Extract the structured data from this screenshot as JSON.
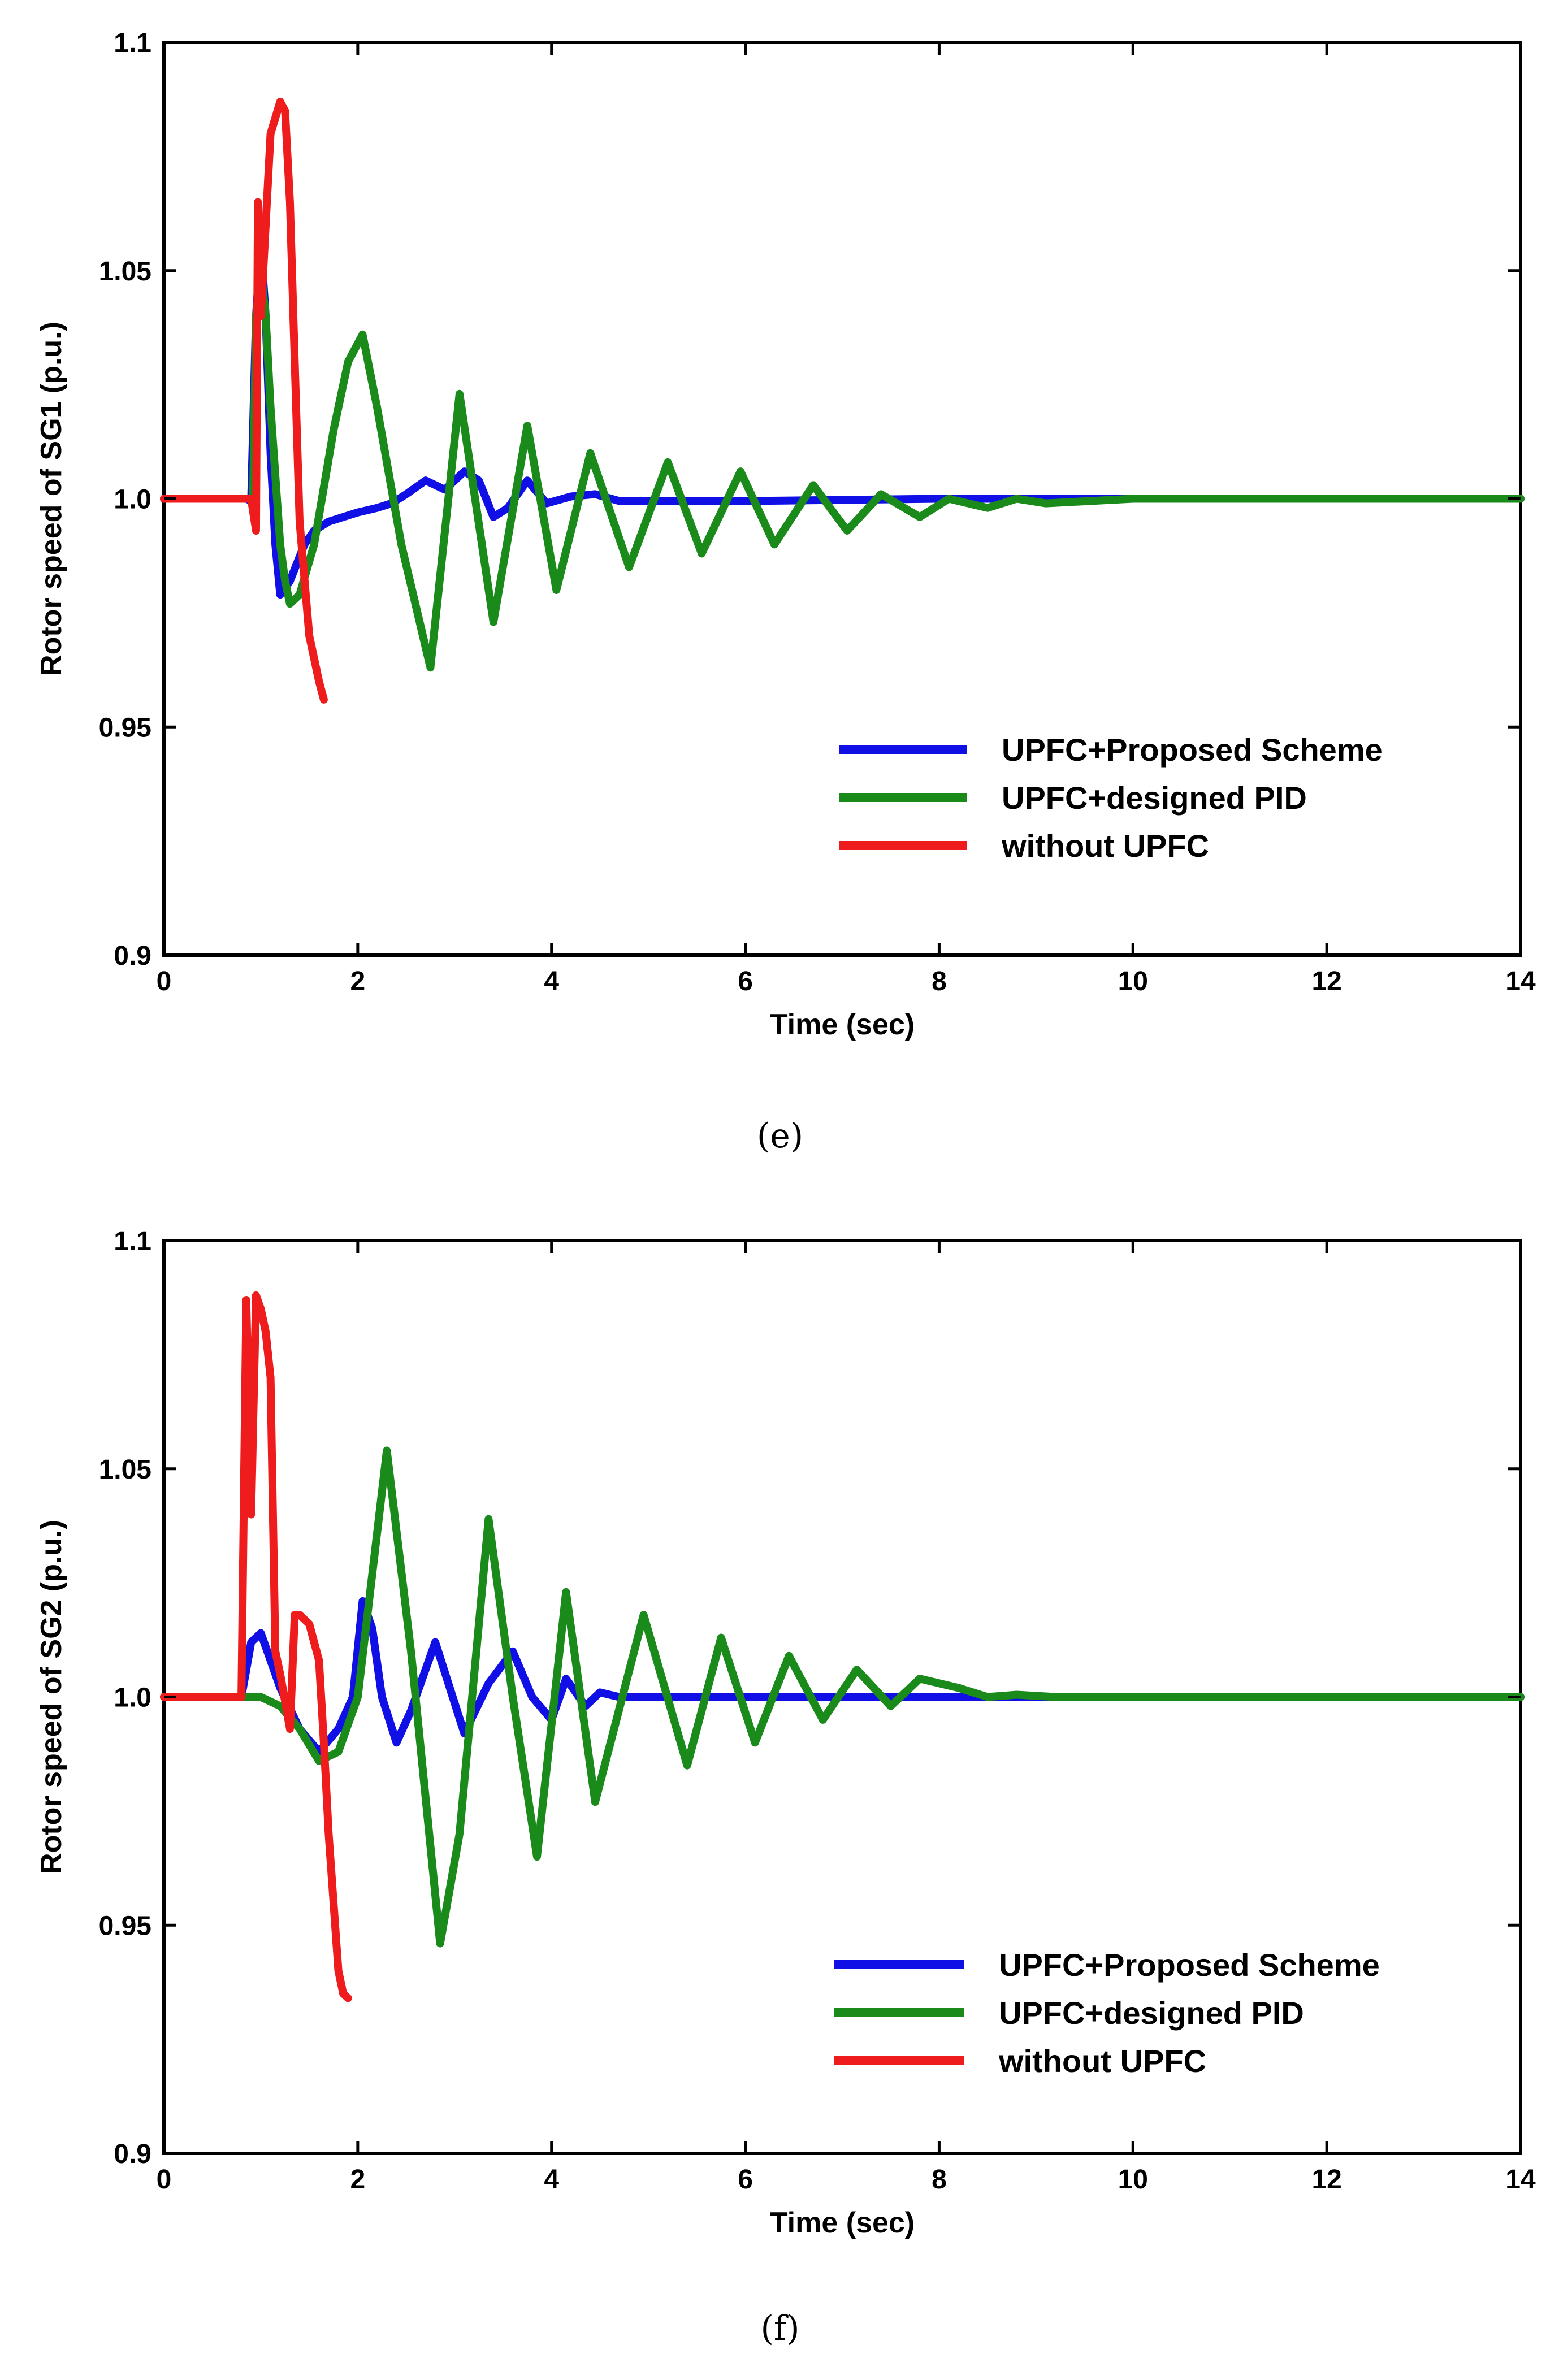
{
  "colors": {
    "proposed": "#1010e6",
    "pid": "#1a8a1a",
    "without": "#ee1c1c"
  },
  "chart_data": [
    {
      "type": "line",
      "panel": "(e)",
      "title": "",
      "xlabel": "Time (sec)",
      "ylabel": "Rotor speed of SG1 (p.u.)",
      "xlim": [
        0,
        14
      ],
      "ylim": [
        0.9,
        1.1
      ],
      "xticks": [
        "0",
        "2",
        "4",
        "6",
        "8",
        "10",
        "12",
        "14"
      ],
      "yticks": [
        "0.9",
        "0.95",
        "1.0",
        "1.05",
        "1.1"
      ],
      "legend": [
        "UPFC+Proposed Scheme",
        "UPFC+designed PID",
        "without UPFC"
      ],
      "legend_position": "bottom-right",
      "series": [
        {
          "name": "UPFC+Proposed Scheme",
          "color_key": "proposed",
          "x": [
            0,
            0.85,
            0.9,
            0.95,
            1.0,
            1.05,
            1.1,
            1.15,
            1.2,
            1.3,
            1.45,
            1.55,
            1.7,
            1.85,
            2.0,
            2.2,
            2.35,
            2.5,
            2.7,
            2.9,
            3.1,
            3.25,
            3.4,
            3.55,
            3.75,
            3.95,
            4.2,
            4.45,
            4.7,
            5.0,
            6.0,
            8.0,
            10.0,
            12.0,
            14.0
          ],
          "y": [
            1.0,
            1.0,
            0.9995,
            1.04,
            1.056,
            1.04,
            1.01,
            0.99,
            0.979,
            0.982,
            0.99,
            0.993,
            0.995,
            0.996,
            0.997,
            0.998,
            0.999,
            1.001,
            1.004,
            1.002,
            1.006,
            1.004,
            0.996,
            0.998,
            1.004,
            0.999,
            1.0005,
            1.001,
            0.9995,
            0.9995,
            0.9995,
            1.0,
            1.0,
            1.0,
            1.0
          ]
        },
        {
          "name": "UPFC+designed PID",
          "color_key": "pid",
          "x": [
            0,
            0.85,
            0.92,
            0.95,
            1.0,
            1.05,
            1.1,
            1.15,
            1.2,
            1.25,
            1.3,
            1.4,
            1.55,
            1.75,
            1.9,
            2.05,
            2.2,
            2.45,
            2.75,
            3.05,
            3.4,
            3.75,
            4.05,
            4.4,
            4.8,
            5.2,
            5.55,
            5.95,
            6.3,
            6.7,
            7.05,
            7.4,
            7.8,
            8.1,
            8.5,
            8.8,
            9.1,
            10.0,
            14.0
          ],
          "y": [
            1.0,
            1.0,
            1.0,
            1.04,
            1.05,
            1.04,
            1.02,
            1.005,
            0.99,
            0.982,
            0.977,
            0.979,
            0.99,
            1.015,
            1.03,
            1.036,
            1.02,
            0.99,
            0.963,
            1.023,
            0.973,
            1.016,
            0.98,
            1.01,
            0.985,
            1.008,
            0.988,
            1.006,
            0.99,
            1.003,
            0.993,
            1.001,
            0.996,
            1.0,
            0.998,
            1.0,
            0.999,
            1.0,
            1.0
          ]
        },
        {
          "name": "without UPFC",
          "color_key": "without",
          "x": [
            0,
            0.85,
            0.9,
            0.95,
            0.97,
            1.0,
            1.05,
            1.1,
            1.2,
            1.25,
            1.3,
            1.35,
            1.4,
            1.5,
            1.6,
            1.65
          ],
          "y": [
            1.0,
            1.0,
            1.0,
            0.993,
            1.065,
            1.04,
            1.06,
            1.08,
            1.087,
            1.085,
            1.065,
            1.03,
            0.995,
            0.97,
            0.96,
            0.956
          ]
        }
      ]
    },
    {
      "type": "line",
      "panel": "(f)",
      "title": "",
      "xlabel": "Time (sec)",
      "ylabel": "Rotor speed of SG2 (p.u.)",
      "xlim": [
        0,
        14
      ],
      "ylim": [
        0.9,
        1.1
      ],
      "xticks": [
        "0",
        "2",
        "4",
        "6",
        "8",
        "10",
        "12",
        "14"
      ],
      "yticks": [
        "0.9",
        "0.95",
        "1.0",
        "1.05",
        "1.1"
      ],
      "legend": [
        "UPFC+Proposed Scheme",
        "UPFC+designed PID",
        "without UPFC"
      ],
      "legend_position": "bottom-right",
      "series": [
        {
          "name": "UPFC+Proposed Scheme",
          "color_key": "proposed",
          "x": [
            0,
            0.8,
            0.9,
            1.0,
            1.1,
            1.2,
            1.4,
            1.6,
            1.8,
            1.95,
            2.05,
            2.15,
            2.25,
            2.4,
            2.55,
            2.8,
            3.1,
            3.35,
            3.6,
            3.8,
            4.0,
            4.15,
            4.35,
            4.5,
            4.7,
            6.0,
            8.0,
            10.0,
            12.0,
            14.0
          ],
          "y": [
            1.0,
            1.0,
            1.012,
            1.014,
            1.008,
            1.002,
            0.993,
            0.988,
            0.993,
            1.0,
            1.021,
            1.015,
            1.0,
            0.99,
            0.997,
            1.012,
            0.992,
            1.003,
            1.01,
            1.0,
            0.995,
            1.004,
            0.998,
            1.001,
            1.0,
            1.0,
            1.0,
            1.0,
            1.0,
            1.0
          ]
        },
        {
          "name": "UPFC+designed PID",
          "color_key": "pid",
          "x": [
            0,
            0.8,
            0.9,
            1.0,
            1.2,
            1.4,
            1.6,
            1.8,
            2.0,
            2.3,
            2.55,
            2.85,
            3.05,
            3.35,
            3.6,
            3.85,
            4.15,
            4.45,
            4.95,
            5.4,
            5.75,
            6.1,
            6.45,
            6.8,
            7.15,
            7.5,
            7.8,
            8.2,
            8.5,
            8.8,
            9.2,
            14.0
          ],
          "y": [
            1.0,
            1.0,
            1.0,
            1.0,
            0.998,
            0.993,
            0.986,
            0.988,
            1.0,
            1.054,
            1.01,
            0.946,
            0.97,
            1.039,
            1.0,
            0.965,
            1.023,
            0.977,
            1.018,
            0.985,
            1.013,
            0.99,
            1.009,
            0.995,
            1.006,
            0.998,
            1.004,
            1.002,
            1.0,
            1.0005,
            1.0,
            1.0
          ]
        },
        {
          "name": "without UPFC",
          "color_key": "without",
          "x": [
            0,
            0.8,
            0.85,
            0.9,
            0.95,
            1.0,
            1.05,
            1.1,
            1.15,
            1.2,
            1.3,
            1.35,
            1.4,
            1.5,
            1.6,
            1.65,
            1.7,
            1.75,
            1.8,
            1.85,
            1.9
          ],
          "y": [
            1.0,
            1.0,
            1.087,
            1.04,
            1.088,
            1.085,
            1.08,
            1.07,
            1.01,
            1.005,
            0.993,
            1.018,
            1.018,
            1.016,
            1.008,
            0.99,
            0.97,
            0.955,
            0.94,
            0.935,
            0.934
          ]
        }
      ]
    }
  ]
}
